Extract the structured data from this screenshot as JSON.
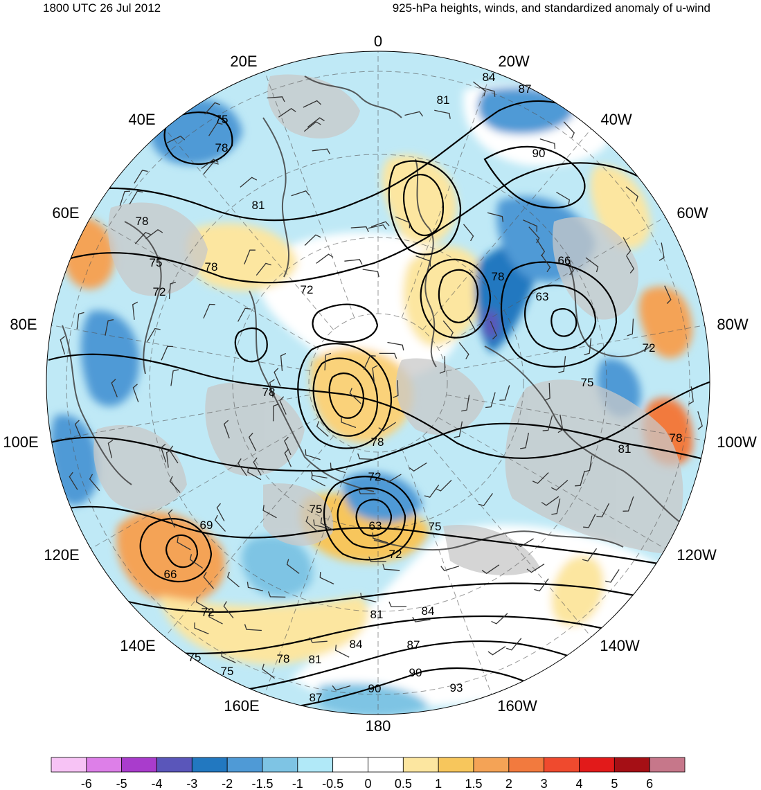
{
  "header": {
    "time_label": "1800 UTC 26 Jul 2012",
    "title": "925-hPa heights, winds, and standardized anomaly of u-wind"
  },
  "map": {
    "projection": "north polar stereographic",
    "center_longitude_top": "0",
    "longitude_labels": [
      {
        "text": "0",
        "lon": 0
      },
      {
        "text": "20W",
        "lon": -20
      },
      {
        "text": "40W",
        "lon": -40
      },
      {
        "text": "60W",
        "lon": -60
      },
      {
        "text": "80W",
        "lon": -80
      },
      {
        "text": "100W",
        "lon": -100
      },
      {
        "text": "120W",
        "lon": -120
      },
      {
        "text": "140W",
        "lon": -140
      },
      {
        "text": "160W",
        "lon": -160
      },
      {
        "text": "180",
        "lon": 180
      },
      {
        "text": "160E",
        "lon": 160
      },
      {
        "text": "140E",
        "lon": 140
      },
      {
        "text": "120E",
        "lon": 120
      },
      {
        "text": "100E",
        "lon": 100
      },
      {
        "text": "80E",
        "lon": 80
      },
      {
        "text": "60E",
        "lon": 60
      },
      {
        "text": "40E",
        "lon": 40
      },
      {
        "text": "20E",
        "lon": 20
      }
    ],
    "height_contour_labels": [
      "81",
      "84",
      "87",
      "90",
      "75",
      "78",
      "81",
      "78",
      "75",
      "72",
      "78",
      "72",
      "66",
      "63",
      "78",
      "72",
      "75",
      "78",
      "81",
      "78",
      "78",
      "72",
      "75",
      "63",
      "72",
      "75",
      "69",
      "66",
      "72",
      "81",
      "84",
      "87",
      "90",
      "93",
      "90",
      "87",
      "84",
      "81",
      "78",
      "75",
      "75"
    ],
    "land_color": "#c8c8c8",
    "coastline_color": "#404040",
    "contour_color": "#000000"
  },
  "colorbar": {
    "tick_labels": [
      "-6",
      "-5",
      "-4",
      "-3",
      "-2",
      "-1.5",
      "-1",
      "-0.5",
      "0",
      "0.5",
      "1",
      "1.5",
      "2",
      "3",
      "4",
      "5",
      "6"
    ],
    "colors": [
      "#f7c3f5",
      "#dd7fe8",
      "#a93ccc",
      "#5a56ba",
      "#2278c0",
      "#4f9ad6",
      "#7ec4e4",
      "#b1e9f8",
      "#ffffff",
      "#ffffff",
      "#fce6a0",
      "#f7c65c",
      "#f4a356",
      "#f27a3e",
      "#ef4a2e",
      "#e21a1a",
      "#a50f15",
      "#c6778a"
    ]
  }
}
